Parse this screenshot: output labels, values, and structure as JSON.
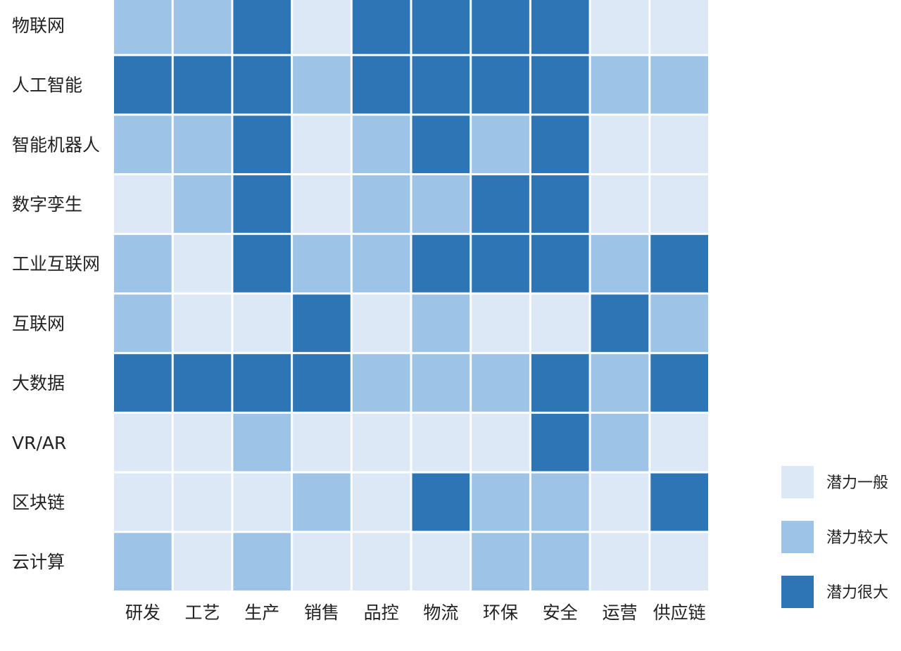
{
  "chart_data": {
    "type": "heatmap",
    "title": "",
    "xlabel": "",
    "ylabel": "",
    "x_categories": [
      "研发",
      "工艺",
      "生产",
      "销售",
      "品控",
      "物流",
      "环保",
      "安全",
      "运营",
      "供应链"
    ],
    "y_categories": [
      "物联网",
      "人工智能",
      "智能机器人",
      "数字孪生",
      "工业互联网",
      "互联网",
      "大数据",
      "VR/AR",
      "区块链",
      "云计算"
    ],
    "values": [
      [
        1,
        1,
        2,
        0,
        2,
        2,
        2,
        2,
        0,
        0
      ],
      [
        2,
        2,
        2,
        1,
        2,
        2,
        2,
        2,
        1,
        1
      ],
      [
        1,
        1,
        2,
        0,
        1,
        2,
        1,
        2,
        0,
        0
      ],
      [
        0,
        1,
        2,
        0,
        1,
        1,
        2,
        2,
        0,
        0
      ],
      [
        1,
        0,
        2,
        1,
        1,
        2,
        2,
        2,
        1,
        2
      ],
      [
        1,
        0,
        0,
        2,
        0,
        1,
        0,
        0,
        2,
        1
      ],
      [
        2,
        2,
        2,
        2,
        1,
        1,
        1,
        2,
        1,
        2
      ],
      [
        0,
        0,
        1,
        0,
        0,
        0,
        0,
        2,
        1,
        0
      ],
      [
        0,
        0,
        0,
        1,
        0,
        2,
        1,
        1,
        0,
        2
      ],
      [
        1,
        0,
        1,
        0,
        0,
        0,
        1,
        1,
        0,
        0
      ]
    ],
    "levels": [
      {
        "value": 0,
        "label": "潜力一般",
        "color": "#dce8f5"
      },
      {
        "value": 1,
        "label": "潜力较大",
        "color": "#9dc3e6"
      },
      {
        "value": 2,
        "label": "潜力很大",
        "color": "#2e75b6"
      }
    ],
    "legend_position": "right"
  }
}
